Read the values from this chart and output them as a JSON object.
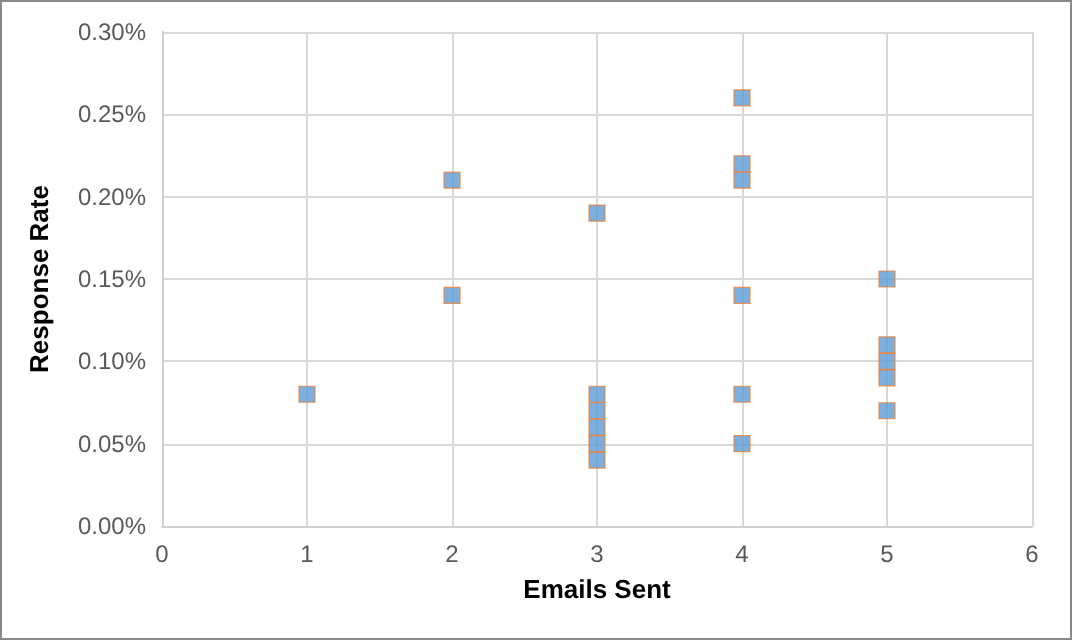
{
  "chart_data": {
    "type": "scatter",
    "xlabel": "Emails Sent",
    "ylabel": "Response Rate",
    "x": [
      1,
      2,
      2,
      3,
      3,
      3,
      3,
      3,
      3,
      4,
      4,
      4,
      4,
      4,
      4,
      5,
      5,
      5,
      5,
      5
    ],
    "values": [
      0.08,
      0.21,
      0.14,
      0.19,
      0.08,
      0.07,
      0.06,
      0.05,
      0.04,
      0.26,
      0.22,
      0.21,
      0.14,
      0.08,
      0.05,
      0.15,
      0.11,
      0.1,
      0.09,
      0.07
    ],
    "color": "#5b9bd5",
    "marker": "square",
    "grid": true,
    "xlim": [
      0,
      6
    ],
    "xticks": [
      0,
      1,
      2,
      3,
      4,
      5,
      6
    ],
    "ylim": [
      0,
      0.3
    ],
    "yticks": [
      {
        "value": 0,
        "label": "0.00%"
      },
      {
        "value": 0.05,
        "label": "0.05%"
      },
      {
        "value": 0.1,
        "label": "0.10%"
      },
      {
        "value": 0.15,
        "label": "0.15%"
      },
      {
        "value": 0.2,
        "label": "0.20%"
      },
      {
        "value": 0.25,
        "label": "0.25%"
      },
      {
        "value": 0.3,
        "label": "0.30%"
      }
    ]
  }
}
